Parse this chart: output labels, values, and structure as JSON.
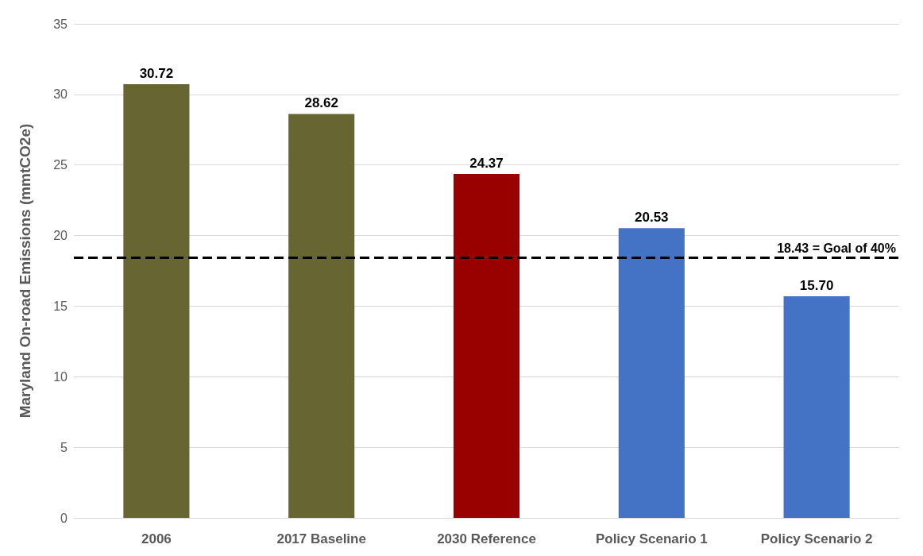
{
  "chart_data": {
    "type": "bar",
    "ylabel": "Maryland On-road Emissions (mmtCO2e)",
    "categories": [
      "2006",
      "2017 Baseline",
      "2030 Reference",
      "Policy Scenario 1",
      "Policy Scenario 2"
    ],
    "values": [
      30.72,
      28.62,
      24.37,
      20.53,
      15.7
    ],
    "value_labels": [
      "30.72",
      "28.62",
      "24.37",
      "20.53",
      "15.70"
    ],
    "colors": [
      "#676633",
      "#676633",
      "#990000",
      "#4472c4",
      "#4472c4"
    ],
    "ylim": [
      0,
      35
    ],
    "yticks": [
      0,
      5,
      10,
      15,
      20,
      25,
      30,
      35
    ],
    "grid": "y",
    "ref_lines": [
      {
        "axis": "y",
        "value": 18.43,
        "label": "18.43 = Goal of 40%",
        "color": "#000000",
        "line_style": "dashed"
      }
    ]
  }
}
